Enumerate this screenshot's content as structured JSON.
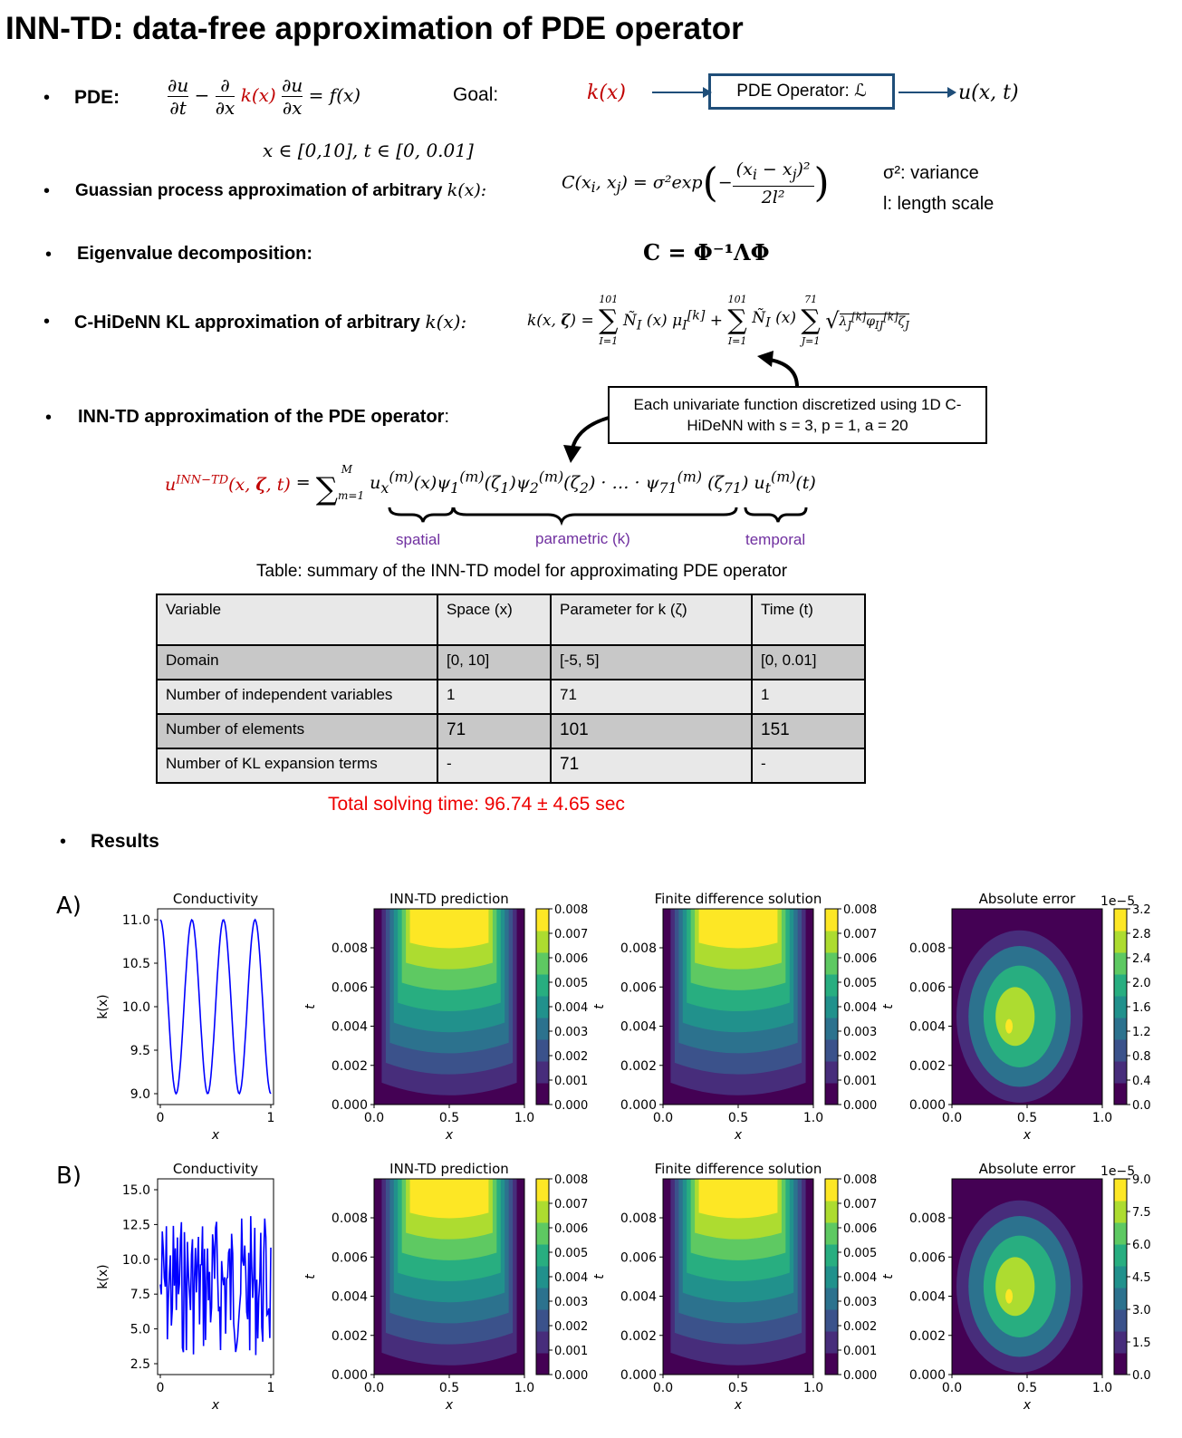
{
  "title": "INN-TD: data-free approximation of PDE operator",
  "bullet_glyph": "•",
  "pde": {
    "label": "PDE:",
    "equation": "∂u/∂t − ∂/∂x k(x) ∂u/∂x = f(x)",
    "domain": "x ∈ [0,10], t ∈ [0, 0.01]",
    "goal_label": "Goal:",
    "goal_input": "k(x)",
    "operator_box": "PDE Operator: ℒ",
    "goal_output": "u(x, t)"
  },
  "gp": {
    "label": "Guassian process approximation of arbitrary",
    "label_math": "k(x):",
    "kernel": "C(xᵢ, xⱼ) = σ²exp(−(xᵢ − xⱼ)²/2l²)",
    "var_note": "σ²: variance",
    "len_note": "l: length scale"
  },
  "eig": {
    "label": "Eigenvalue decomposition:",
    "equation": "C = Φ⁻¹ΛΦ"
  },
  "kl": {
    "label": "C-HiDeNN KL approximation of arbitrary",
    "label_math": "k(x):",
    "equation": "k(x, ζ) = Σ Ñ_I(x) μ_I^[k] + Σ Ñ_I(x) Σ √λ_J^[k] φ_IJ^[k] ζ_J",
    "sum_upper_1": "101",
    "sum_lower_1": "I=1",
    "sum_upper_2": "101",
    "sum_lower_2": "I=1",
    "sum_upper_3": "71",
    "sum_lower_3": "J=1"
  },
  "inn": {
    "label": "INN-TD approximation of the PDE operator",
    "label_suffix": ":",
    "callout": "Each univariate function discretized using 1D C-HiDeNN with s = 3, p = 1, a = 20",
    "equation_lhs": "u^INN−TD(x, ζ, t) =",
    "sum_upper": "M",
    "sum_lower": "m=1",
    "equation_rhs": "u_x^(m)(x)ψ_1^(m)(ζ₁)ψ_2^(m)(ζ₂) · … · ψ_71^(m)(ζ₇₁) u_t^(m)(t)",
    "brace_spatial": "spatial",
    "brace_parametric": "parametric (k)",
    "brace_temporal": "temporal"
  },
  "table": {
    "caption": "Table: summary of the INN-TD model for approximating PDE operator",
    "header": [
      "Variable",
      "Space (x)",
      "Parameter for k (ζ)",
      "Time (t)"
    ],
    "rows": [
      [
        "Domain",
        "[0, 10]",
        "[-5, 5]",
        "[0, 0.01]"
      ],
      [
        "Number of independent variables",
        "1",
        "71",
        "1"
      ],
      [
        "Number of elements",
        "71",
        "101",
        "151"
      ],
      [
        "Number of KL expansion terms",
        "-",
        "71",
        "-"
      ]
    ]
  },
  "total_time": "Total solving time: 96.74 ± 4.65 sec",
  "results_label": "Results",
  "figure": {
    "rows": [
      {
        "tag": "A)",
        "conductivity_title": "Conductivity",
        "prediction_title": "INN-TD prediction",
        "fd_title": "Finite difference solution",
        "error_title": "Absolute error",
        "error_scale": "1e−5",
        "k_yticks": [
          "11.0",
          "10.5",
          "10.0",
          "9.5",
          "9.0"
        ],
        "err_ticks": [
          "3.2",
          "2.8",
          "2.4",
          "2.0",
          "1.6",
          "1.2",
          "0.8",
          "0.4",
          "0.0"
        ]
      },
      {
        "tag": "B)",
        "conductivity_title": "Conductivity",
        "prediction_title": "INN-TD prediction",
        "fd_title": "Finite difference solution",
        "error_title": "Absolute error",
        "error_scale": "1e−5",
        "k_yticks": [
          "15.0",
          "12.5",
          "10.0",
          "7.5",
          "5.0",
          "2.5"
        ],
        "err_ticks": [
          "9.0",
          "7.5",
          "6.0",
          "4.5",
          "3.0",
          "1.5",
          "0.0"
        ]
      }
    ],
    "k_xticks": [
      "0",
      "1"
    ],
    "k_xlabel": "x",
    "k_ylabel": "k(x)",
    "t_yticks": [
      "0.008",
      "0.006",
      "0.004",
      "0.002",
      "0.000"
    ],
    "t_ylabel": "t",
    "x_ticks": [
      "0.0",
      "0.5",
      "1.0"
    ],
    "x_label": "x",
    "u_cbar_ticks": [
      "0.008",
      "0.007",
      "0.006",
      "0.005",
      "0.004",
      "0.003",
      "0.002",
      "0.001",
      "0.000"
    ],
    "colors": {
      "viridis": [
        "#440154",
        "#472d7b",
        "#3b528b",
        "#2c728e",
        "#21918c",
        "#28ae80",
        "#5ec962",
        "#addc30",
        "#fde725"
      ],
      "line": "#0000ff"
    }
  }
}
